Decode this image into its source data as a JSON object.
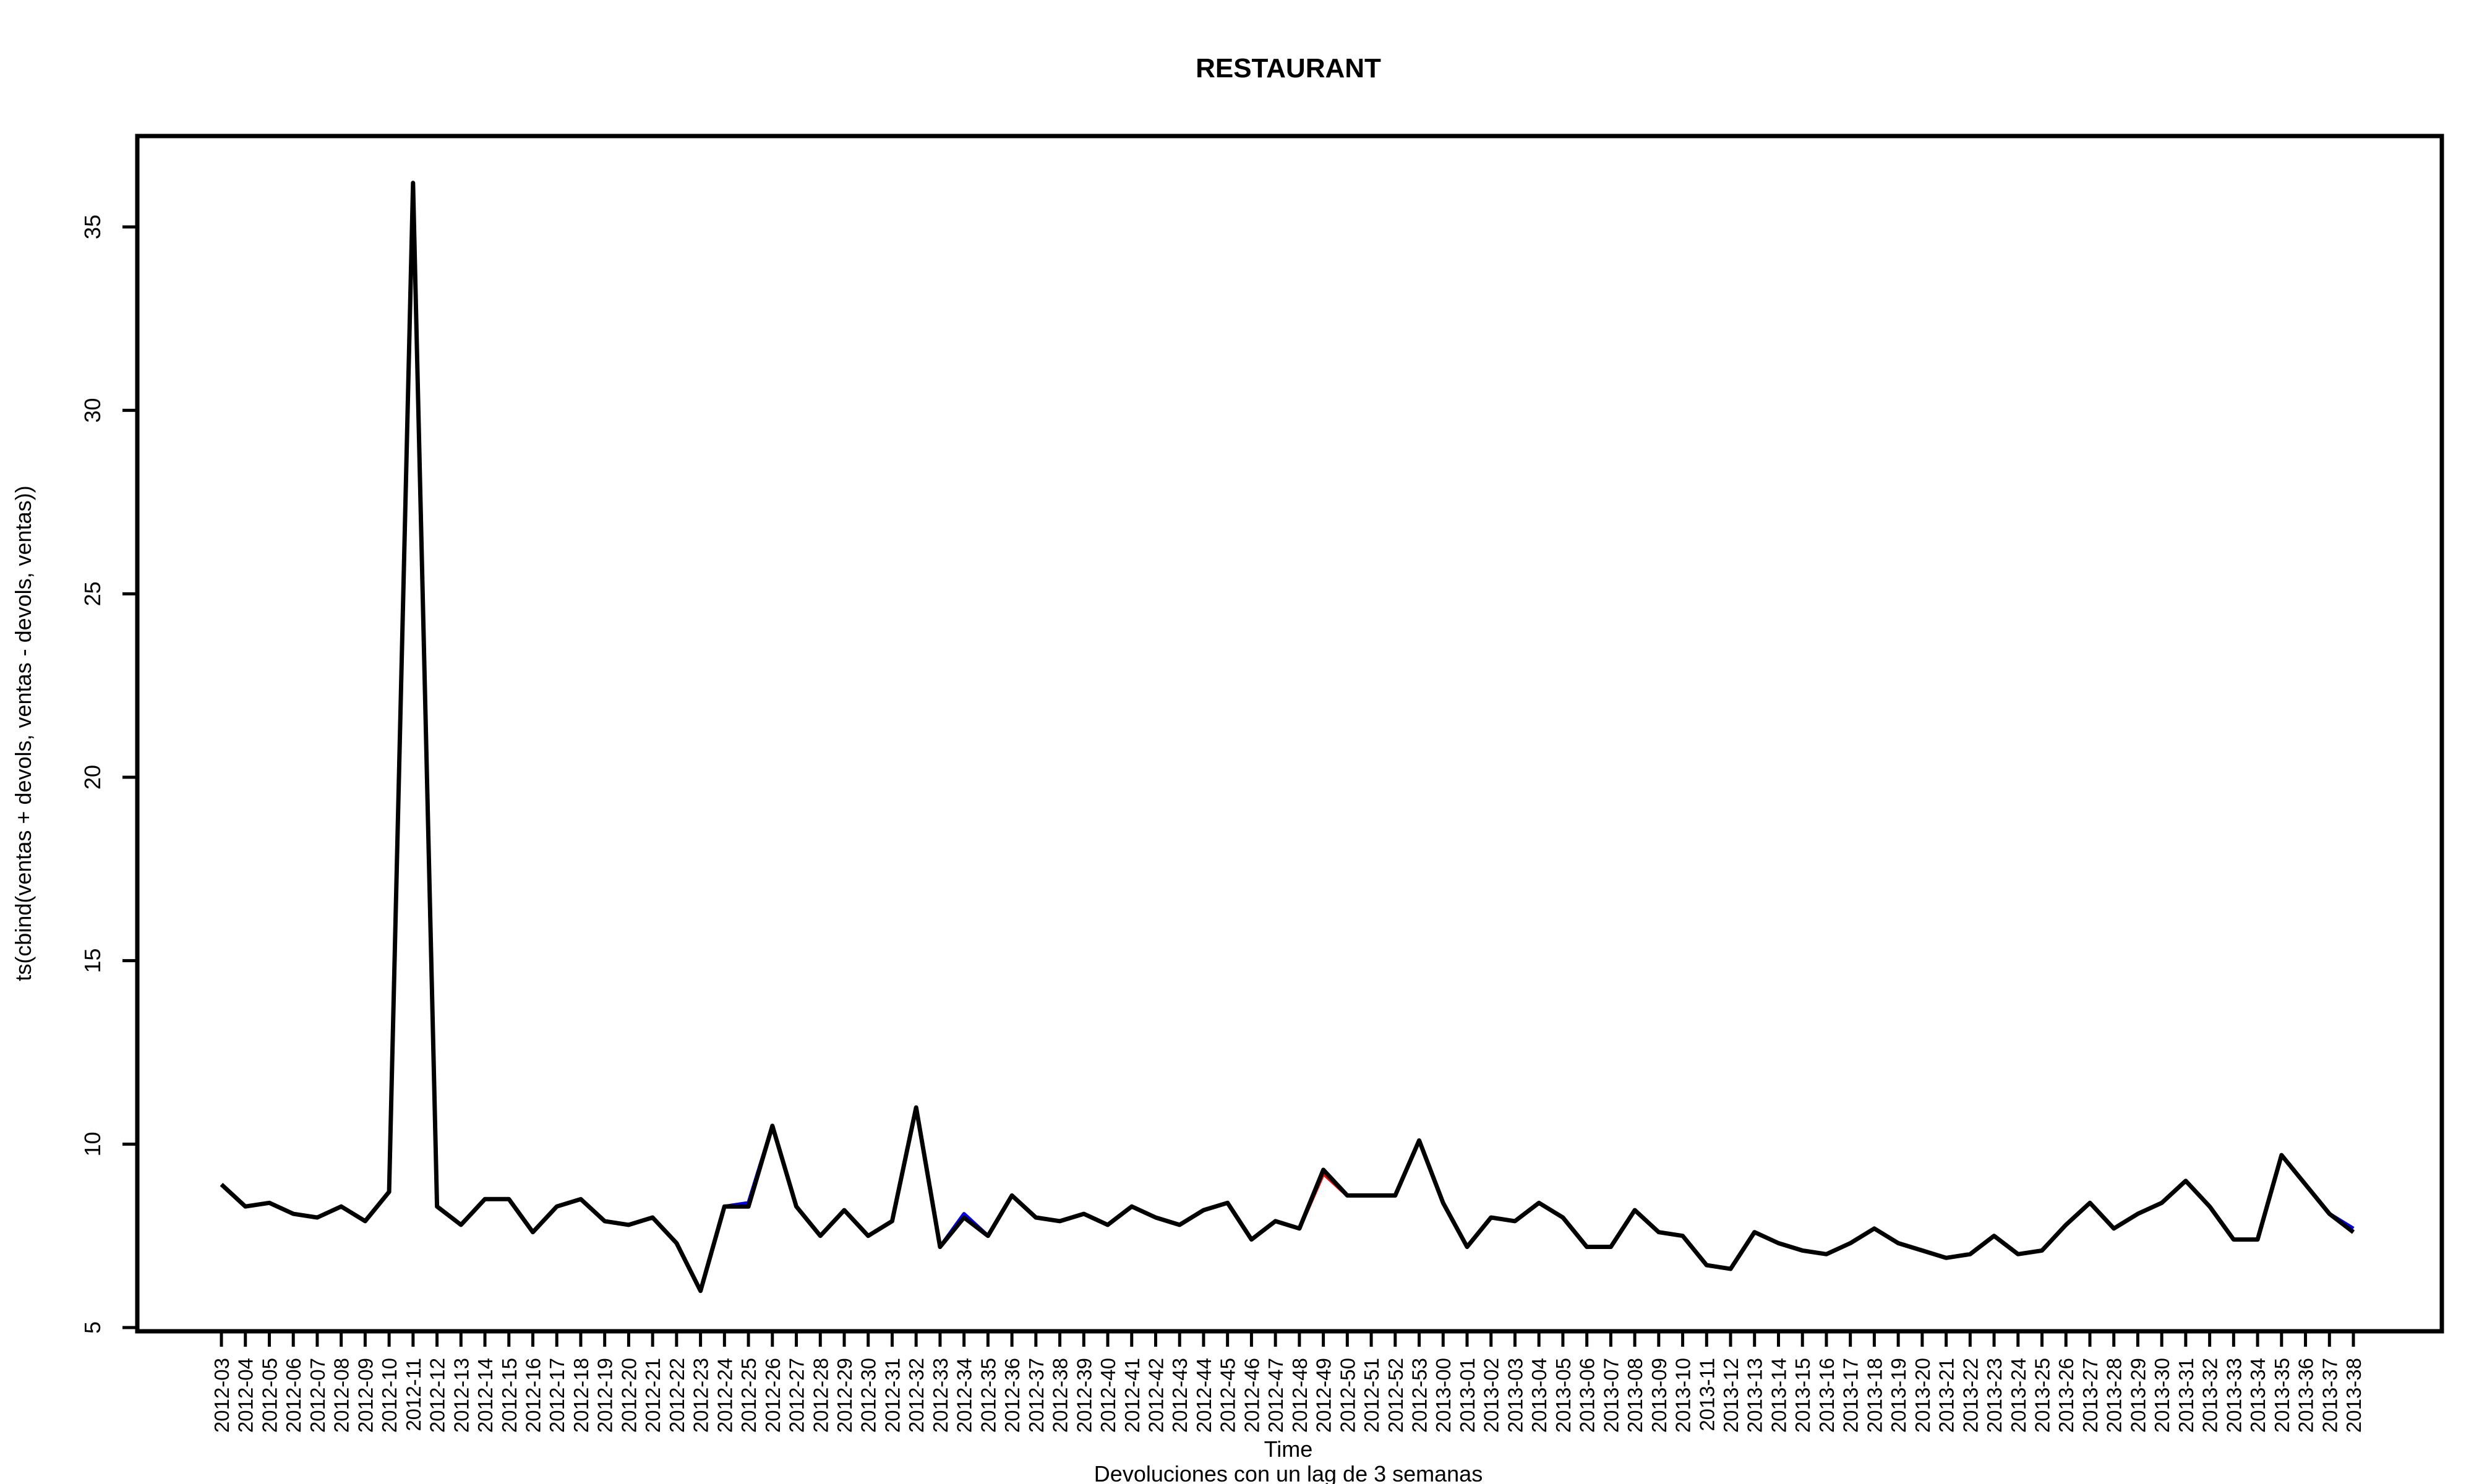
{
  "chart_data": {
    "type": "line",
    "title": "RESTAURANT",
    "xlabel": "Time",
    "ylabel": "ts(cbind(ventas + devols, ventas - devols, ventas))",
    "subtitle": "Devoluciones con un lag de 3 semanas",
    "ylim": [
      5,
      37
    ],
    "yticks": [
      5,
      10,
      15,
      20,
      25,
      30,
      35
    ],
    "grid": false,
    "categories": [
      "2012-03",
      "2012-04",
      "2012-05",
      "2012-06",
      "2012-07",
      "2012-08",
      "2012-09",
      "2012-10",
      "2012-11",
      "2012-12",
      "2012-13",
      "2012-14",
      "2012-15",
      "2012-16",
      "2012-17",
      "2012-18",
      "2012-19",
      "2012-20",
      "2012-21",
      "2012-22",
      "2012-23",
      "2012-24",
      "2012-25",
      "2012-26",
      "2012-27",
      "2012-28",
      "2012-29",
      "2012-30",
      "2012-31",
      "2012-32",
      "2012-33",
      "2012-34",
      "2012-35",
      "2012-36",
      "2012-37",
      "2012-38",
      "2012-39",
      "2012-40",
      "2012-41",
      "2012-42",
      "2012-43",
      "2012-44",
      "2012-45",
      "2012-46",
      "2012-47",
      "2012-48",
      "2012-49",
      "2012-50",
      "2012-51",
      "2012-52",
      "2012-53",
      "2013-00",
      "2013-01",
      "2013-02",
      "2013-03",
      "2013-04",
      "2013-05",
      "2013-06",
      "2013-07",
      "2013-08",
      "2013-09",
      "2013-10",
      "2013-11",
      "2013-12",
      "2013-13",
      "2013-14",
      "2013-15",
      "2013-16",
      "2013-17",
      "2013-18",
      "2013-19",
      "2013-20",
      "2013-21",
      "2013-22",
      "2013-23",
      "2013-24",
      "2013-25",
      "2013-26",
      "2013-27",
      "2013-28",
      "2013-29",
      "2013-30",
      "2013-31",
      "2013-32",
      "2013-33",
      "2013-34",
      "2013-35",
      "2013-36",
      "2013-37",
      "2013-38"
    ],
    "series": [
      {
        "color": "#ff0000",
        "values": [
          8.9,
          8.3,
          8.4,
          8.1,
          8.0,
          8.3,
          7.9,
          8.7,
          36.2,
          8.3,
          7.8,
          8.5,
          8.5,
          7.6,
          8.3,
          8.5,
          7.9,
          7.8,
          8.0,
          7.3,
          6.0,
          8.3,
          8.3,
          10.5,
          8.3,
          7.5,
          8.2,
          7.5,
          7.9,
          11.0,
          7.2,
          8.0,
          7.5,
          8.6,
          8.0,
          7.9,
          8.1,
          7.8,
          8.3,
          8.0,
          7.8,
          8.2,
          8.4,
          7.4,
          7.9,
          7.7,
          9.2,
          8.6,
          8.6,
          8.6,
          10.1,
          8.4,
          7.2,
          8.0,
          7.9,
          8.4,
          8.0,
          7.2,
          7.2,
          8.2,
          7.6,
          7.5,
          6.7,
          6.6,
          7.6,
          7.3,
          7.1,
          7.0,
          7.3,
          7.7,
          7.3,
          7.1,
          6.9,
          7.0,
          7.5,
          7.0,
          7.1,
          7.8,
          8.4,
          7.7,
          8.1,
          8.4,
          9.0,
          8.3,
          7.4,
          7.4,
          9.7,
          8.9,
          8.1,
          7.6
        ]
      },
      {
        "color": "#0000ff",
        "values": [
          8.9,
          8.3,
          8.4,
          8.1,
          8.0,
          8.3,
          7.9,
          8.7,
          36.2,
          8.3,
          7.8,
          8.5,
          8.5,
          7.6,
          8.3,
          8.5,
          7.9,
          7.8,
          8.0,
          7.3,
          6.0,
          8.3,
          8.4,
          10.5,
          8.3,
          7.5,
          8.2,
          7.5,
          7.9,
          11.0,
          7.2,
          8.1,
          7.5,
          8.6,
          8.0,
          7.9,
          8.1,
          7.8,
          8.3,
          8.0,
          7.8,
          8.2,
          8.4,
          7.4,
          7.9,
          7.7,
          9.3,
          8.6,
          8.6,
          8.6,
          10.1,
          8.4,
          7.2,
          8.0,
          7.9,
          8.4,
          8.0,
          7.2,
          7.2,
          8.2,
          7.6,
          7.5,
          6.7,
          6.6,
          7.6,
          7.3,
          7.1,
          7.0,
          7.3,
          7.7,
          7.3,
          7.1,
          6.9,
          7.0,
          7.5,
          7.0,
          7.1,
          7.8,
          8.4,
          7.7,
          8.1,
          8.4,
          9.0,
          8.3,
          7.4,
          7.4,
          9.7,
          8.9,
          8.1,
          7.7
        ]
      },
      {
        "color": "#000000",
        "values": [
          8.9,
          8.3,
          8.4,
          8.1,
          8.0,
          8.3,
          7.9,
          8.7,
          36.2,
          8.3,
          7.8,
          8.5,
          8.5,
          7.6,
          8.3,
          8.5,
          7.9,
          7.8,
          8.0,
          7.3,
          6.0,
          8.3,
          8.3,
          10.5,
          8.3,
          7.5,
          8.2,
          7.5,
          7.9,
          11.0,
          7.2,
          8.0,
          7.5,
          8.6,
          8.0,
          7.9,
          8.1,
          7.8,
          8.3,
          8.0,
          7.8,
          8.2,
          8.4,
          7.4,
          7.9,
          7.7,
          9.3,
          8.6,
          8.6,
          8.6,
          10.1,
          8.4,
          7.2,
          8.0,
          7.9,
          8.4,
          8.0,
          7.2,
          7.2,
          8.2,
          7.6,
          7.5,
          6.7,
          6.6,
          7.6,
          7.3,
          7.1,
          7.0,
          7.3,
          7.7,
          7.3,
          7.1,
          6.9,
          7.0,
          7.5,
          7.0,
          7.1,
          7.8,
          8.4,
          7.7,
          8.1,
          8.4,
          9.0,
          8.3,
          7.4,
          7.4,
          9.7,
          8.9,
          8.1,
          7.6
        ]
      }
    ]
  }
}
